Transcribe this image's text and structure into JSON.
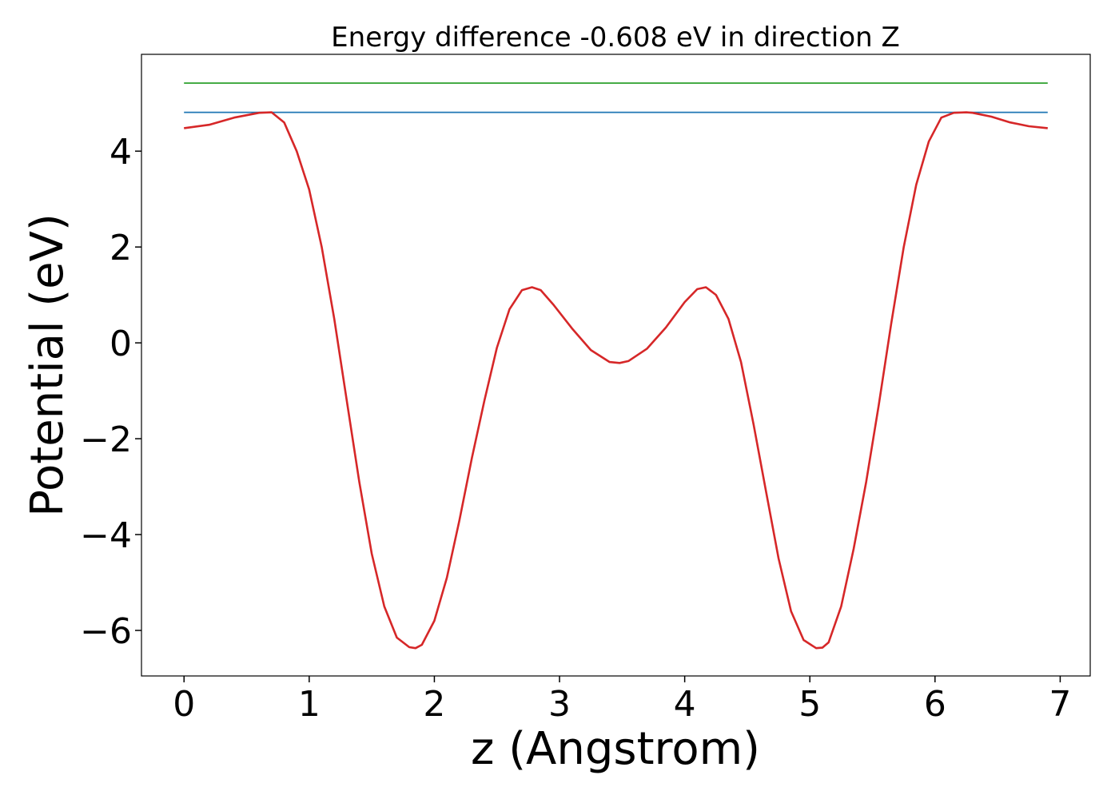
{
  "chart_data": {
    "type": "line",
    "title": "Energy difference -0.608 eV in direction Z",
    "xlabel": "z (Angstrom)",
    "ylabel": "Potential (eV)",
    "xlim": [
      -0.34,
      7.24
    ],
    "ylim": [
      -6.95,
      6.02
    ],
    "xticks": [
      0,
      1,
      2,
      3,
      4,
      5,
      6,
      7
    ],
    "xtick_labels": [
      "0",
      "1",
      "2",
      "3",
      "4",
      "5",
      "6",
      "7"
    ],
    "yticks": [
      4,
      2,
      0,
      -2,
      -4,
      -6
    ],
    "ytick_labels": [
      "4",
      "2",
      "0",
      "−2",
      "−4",
      "−6"
    ],
    "grid": false,
    "series": [
      {
        "color": "#2ca02c",
        "x": [
          0,
          6.9
        ],
        "y": [
          5.42,
          5.42
        ]
      },
      {
        "color": "#1f77b4",
        "x": [
          0,
          6.9
        ],
        "y": [
          4.81,
          4.81
        ]
      },
      {
        "color": "#d62728",
        "x": [
          0,
          0.2,
          0.4,
          0.6,
          0.7,
          0.8,
          0.9,
          1.0,
          1.1,
          1.2,
          1.3,
          1.4,
          1.5,
          1.6,
          1.7,
          1.8,
          1.85,
          1.9,
          2.0,
          2.1,
          2.2,
          2.3,
          2.4,
          2.5,
          2.6,
          2.7,
          2.78,
          2.85,
          2.95,
          3.1,
          3.25,
          3.4,
          3.48,
          3.55,
          3.7,
          3.85,
          4.0,
          4.1,
          4.17,
          4.25,
          4.35,
          4.45,
          4.55,
          4.65,
          4.75,
          4.85,
          4.95,
          5.05,
          5.1,
          5.15,
          5.25,
          5.35,
          5.45,
          5.55,
          5.65,
          5.75,
          5.85,
          5.95,
          6.05,
          6.15,
          6.25,
          6.3,
          6.45,
          6.6,
          6.75,
          6.9
        ],
        "y": [
          4.48,
          4.55,
          4.7,
          4.8,
          4.81,
          4.6,
          4.0,
          3.2,
          2.0,
          0.5,
          -1.2,
          -2.9,
          -4.4,
          -5.5,
          -6.15,
          -6.35,
          -6.37,
          -6.3,
          -5.8,
          -4.9,
          -3.7,
          -2.4,
          -1.2,
          -0.1,
          0.7,
          1.1,
          1.16,
          1.1,
          0.8,
          0.3,
          -0.15,
          -0.4,
          -0.42,
          -0.38,
          -0.12,
          0.32,
          0.85,
          1.12,
          1.16,
          1.0,
          0.5,
          -0.4,
          -1.7,
          -3.1,
          -4.5,
          -5.6,
          -6.2,
          -6.37,
          -6.36,
          -6.25,
          -5.5,
          -4.3,
          -2.9,
          -1.3,
          0.4,
          2.0,
          3.3,
          4.2,
          4.7,
          4.8,
          4.81,
          4.8,
          4.72,
          4.6,
          4.52,
          4.48
        ]
      }
    ]
  }
}
